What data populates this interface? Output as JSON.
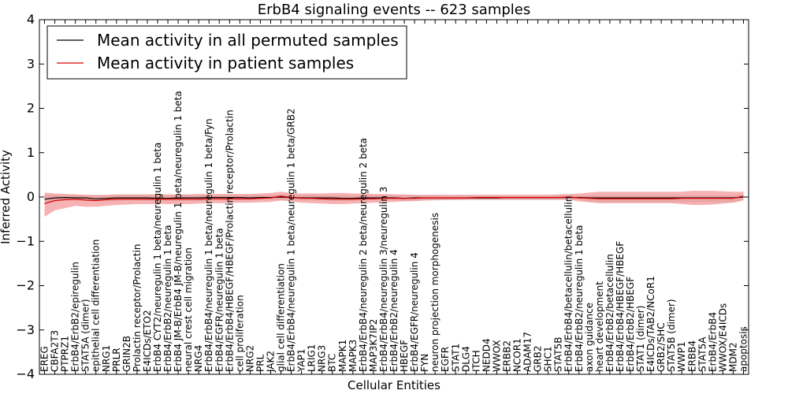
{
  "chart_data": {
    "type": "line",
    "title": "ErbB4 signaling events -- 623 samples",
    "xlabel": "Cellular Entities",
    "ylabel": "Inferred Activity",
    "ylim": [
      -4,
      4
    ],
    "yticks": [
      4,
      3,
      2,
      1,
      0,
      -1,
      -2,
      -3,
      -4
    ],
    "grid": false,
    "legend_position": "top-left",
    "categories": [
      "EREG",
      "CBFA2T3",
      "PTPRZ1",
      "ErbB4/ErbB2/epiregulin",
      "STAT5A (dimer)",
      "epithelial cell differentiation",
      "NRG1",
      "PRLR",
      "GRIN2B",
      "Prolactin receptor/Prolactin",
      "E4ICDs/ETO2",
      "ErbB4 CYT2/neuregulin 1 beta/neuregulin 1 beta",
      "ErbB4/ErbB2/neuregulin 1 beta",
      "ErbB4 JM-B/ErbB4 JM-B/neuregulin 1 beta/neuregulin 1 beta",
      "neural crest cell migration",
      "NRG4",
      "ErbB4/ErbB4/neuregulin 1 beta/neuregulin 1 beta/Fyn",
      "ErbB4/EGFR/neuregulin 1 beta",
      "ErbB4/ErbB4/HBEGF/HBEGF/Prolactin receptor/Prolactin",
      "cell proliferation",
      "NRG2",
      "PRL",
      "JAK2",
      "glial cell differentiation",
      "ErbB4/ErbB4/neuregulin 1 beta/neuregulin 1 beta/GRB2",
      "YAP1",
      "LRIG1",
      "NRG3",
      "BTC",
      "MAPK1",
      "MAPK3",
      "ErbB4/ErbB4/neuregulin 2 beta/neuregulin 2 beta",
      "MAP3K7IP2",
      "ErbB4/ErbB4/neuregulin 3/neuregulin 3",
      "ErbB4/ErbB2/neuregulin 4",
      "HBEGF",
      "ErbB4/EGFR/neuregulin 4",
      "FYN",
      "neuron projection morphogenesis",
      "EGFR",
      "STAT1",
      "DLG4",
      "ITCH",
      "NEDD4",
      "WWOX",
      "ERBB2",
      "NCOR1",
      "ADAM17",
      "GRB2",
      "SHC1",
      "STAT5B",
      "ErbB4/ErbB4/betacellulin/betacellulin",
      "ErbB4/ErbB2/neuregulin 1 beta",
      "axon guidance",
      "heart development",
      "ErbB4/ErbB2/betacellulin",
      "ErbB4/ErbB4/HBEGF/HBEGF",
      "ErbB4/ErbB2/HBEGF",
      "STAT1 (dimer)",
      "E4ICDs/TAB2/NCoR1",
      "GRB2/SHC",
      "STAT5B (dimer)",
      "WWP1",
      "ERBB4",
      "STAT5A",
      "ErbB4/ErbB4",
      "WWOX/E4ICDs",
      "MDM2",
      "apoptosis"
    ],
    "series": [
      {
        "name": "Mean activity in all permuted samples",
        "color": "#000000",
        "values": [
          -0.05,
          -0.02,
          -0.01,
          -0.02,
          -0.02,
          -0.04,
          -0.03,
          -0.02,
          -0.02,
          -0.02,
          -0.02,
          -0.03,
          -0.03,
          -0.02,
          -0.02,
          -0.02,
          -0.01,
          -0.01,
          -0.01,
          -0.01,
          -0.02,
          -0.01,
          -0.01,
          0.0,
          -0.01,
          -0.02,
          -0.02,
          -0.02,
          -0.02,
          -0.03,
          -0.03,
          -0.02,
          -0.02,
          -0.02,
          -0.02,
          -0.03,
          -0.02,
          -0.02,
          -0.02,
          -0.02,
          -0.02,
          -0.02,
          -0.02,
          -0.02,
          -0.02,
          -0.01,
          -0.01,
          -0.01,
          -0.01,
          -0.01,
          -0.01,
          -0.01,
          -0.01,
          -0.02,
          -0.02,
          -0.02,
          -0.02,
          -0.02,
          -0.02,
          -0.02,
          -0.02,
          -0.02,
          -0.02,
          -0.02,
          -0.02,
          -0.02,
          -0.02,
          -0.02,
          0.0
        ],
        "lower": [
          -0.15,
          -0.1,
          -0.08,
          -0.08,
          -0.09,
          -0.1,
          -0.1,
          -0.09,
          -0.08,
          -0.08,
          -0.08,
          -0.09,
          -0.09,
          -0.09,
          -0.09,
          -0.09,
          -0.08,
          -0.08,
          -0.08,
          -0.08,
          -0.08,
          -0.07,
          -0.07,
          -0.07,
          -0.08,
          -0.08,
          -0.08,
          -0.08,
          -0.09,
          -0.09,
          -0.09,
          -0.08,
          -0.08,
          -0.08,
          -0.08,
          -0.09,
          -0.09,
          -0.08,
          -0.08,
          -0.07,
          -0.07,
          -0.07,
          -0.07,
          -0.07,
          -0.07,
          -0.07,
          -0.07,
          -0.07,
          -0.07,
          -0.07,
          -0.07,
          -0.07,
          -0.07,
          -0.1,
          -0.12,
          -0.12,
          -0.12,
          -0.12,
          -0.12,
          -0.12,
          -0.12,
          -0.12,
          -0.12,
          -0.12,
          -0.12,
          -0.12,
          -0.12,
          -0.12,
          -0.06
        ],
        "upper": [
          0.05,
          0.05,
          0.05,
          0.05,
          0.05,
          0.03,
          0.04,
          0.05,
          0.05,
          0.05,
          0.05,
          0.04,
          0.04,
          0.05,
          0.05,
          0.05,
          0.05,
          0.05,
          0.05,
          0.05,
          0.05,
          0.05,
          0.05,
          0.06,
          0.05,
          0.05,
          0.05,
          0.04,
          0.04,
          0.04,
          0.04,
          0.04,
          0.04,
          0.04,
          0.04,
          0.04,
          0.05,
          0.04,
          0.04,
          0.04,
          0.04,
          0.04,
          0.04,
          0.04,
          0.04,
          0.04,
          0.04,
          0.04,
          0.04,
          0.04,
          0.04,
          0.04,
          0.04,
          0.04,
          0.04,
          0.04,
          0.04,
          0.04,
          0.04,
          0.04,
          0.04,
          0.04,
          0.04,
          0.04,
          0.04,
          0.04,
          0.04,
          0.04,
          0.06
        ]
      },
      {
        "name": "Mean activity in patient samples",
        "color": "#dd0000",
        "values": [
          -0.15,
          -0.08,
          -0.06,
          -0.05,
          -0.07,
          -0.08,
          -0.06,
          -0.05,
          -0.05,
          -0.05,
          -0.05,
          -0.05,
          -0.05,
          -0.05,
          -0.05,
          -0.05,
          -0.04,
          -0.04,
          -0.04,
          -0.04,
          -0.04,
          -0.03,
          -0.02,
          0.02,
          -0.01,
          -0.03,
          -0.03,
          -0.04,
          -0.05,
          -0.05,
          -0.05,
          -0.04,
          -0.04,
          -0.03,
          -0.03,
          -0.03,
          -0.03,
          -0.02,
          -0.02,
          -0.02,
          -0.02,
          -0.02,
          -0.01,
          -0.01,
          -0.01,
          -0.01,
          -0.01,
          -0.01,
          -0.01,
          -0.01,
          -0.01,
          0.0,
          -0.02,
          -0.03,
          -0.04,
          -0.04,
          -0.04,
          -0.04,
          -0.04,
          -0.04,
          -0.04,
          -0.04,
          -0.03,
          -0.03,
          -0.03,
          -0.03,
          -0.03,
          -0.03,
          0.02
        ],
        "lower": [
          -0.45,
          -0.3,
          -0.25,
          -0.2,
          -0.22,
          -0.22,
          -0.2,
          -0.18,
          -0.17,
          -0.16,
          -0.16,
          -0.16,
          -0.16,
          -0.16,
          -0.16,
          -0.15,
          -0.14,
          -0.14,
          -0.14,
          -0.13,
          -0.13,
          -0.12,
          -0.11,
          -0.08,
          -0.1,
          -0.13,
          -0.14,
          -0.15,
          -0.16,
          -0.16,
          -0.15,
          -0.14,
          -0.13,
          -0.12,
          -0.11,
          -0.1,
          -0.09,
          -0.08,
          -0.07,
          -0.07,
          -0.07,
          -0.06,
          -0.06,
          -0.06,
          -0.06,
          -0.06,
          -0.06,
          -0.06,
          -0.06,
          -0.06,
          -0.06,
          -0.06,
          -0.1,
          -0.12,
          -0.14,
          -0.14,
          -0.14,
          -0.14,
          -0.14,
          -0.14,
          -0.14,
          -0.14,
          -0.16,
          -0.18,
          -0.18,
          -0.17,
          -0.15,
          -0.13,
          -0.08
        ],
        "upper": [
          0.1,
          0.08,
          0.07,
          0.06,
          0.05,
          0.05,
          0.05,
          0.06,
          0.06,
          0.06,
          0.06,
          0.06,
          0.06,
          0.06,
          0.06,
          0.07,
          0.07,
          0.07,
          0.07,
          0.07,
          0.07,
          0.08,
          0.09,
          0.12,
          0.09,
          0.08,
          0.08,
          0.08,
          0.09,
          0.09,
          0.08,
          0.08,
          0.07,
          0.07,
          0.06,
          0.06,
          0.05,
          0.05,
          0.05,
          0.05,
          0.05,
          0.05,
          0.05,
          0.05,
          0.05,
          0.05,
          0.05,
          0.05,
          0.05,
          0.05,
          0.06,
          0.07,
          0.08,
          0.1,
          0.12,
          0.12,
          0.12,
          0.12,
          0.12,
          0.12,
          0.12,
          0.12,
          0.12,
          0.14,
          0.14,
          0.14,
          0.13,
          0.12,
          0.12
        ]
      }
    ]
  }
}
